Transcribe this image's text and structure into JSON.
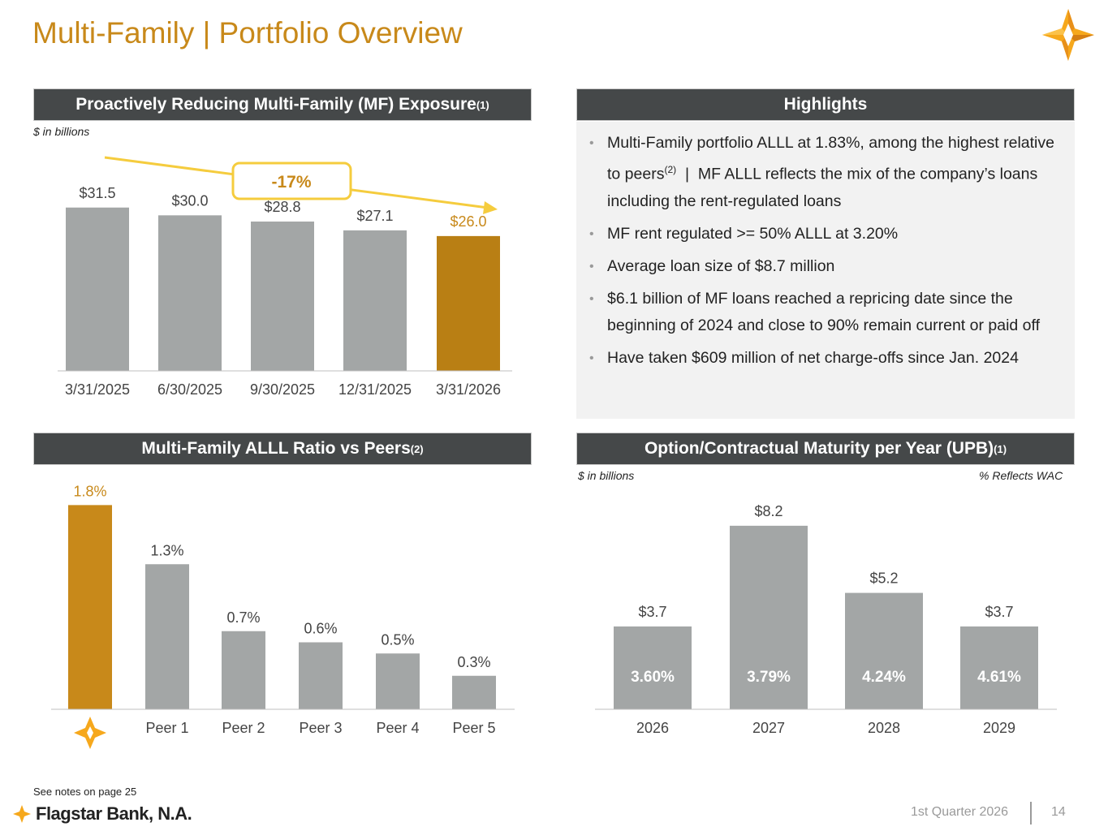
{
  "page": {
    "title": "Multi-Family | Portfolio Overview",
    "footnote": "See notes on page 25",
    "brand": "Flagstar Bank, N.A.",
    "quarter": "1st Quarter 2026",
    "page_number": "14"
  },
  "colors": {
    "gold": "#c8891a",
    "dark_gold": "#b97f14",
    "gray_bar": "#a3a6a6",
    "header_bg": "#454849",
    "trend_line": "#f5cc3e"
  },
  "panels": {
    "exposure": {
      "title": "Proactively Reducing Multi-Family (MF) Exposure",
      "sup": "(1)",
      "units": "$ in billions",
      "change_label": "-17%"
    },
    "highlights": {
      "title": "Highlights",
      "items": [
        {
          "text_before": "Multi-Family portfolio ALLL at 1.83%, among the highest relative to peers",
          "sup": "(2)",
          "text_after": "  |  MF ALLL reflects the mix of the company’s loans including the rent-regulated loans"
        },
        {
          "text": "MF rent regulated >= 50% ALLL at 3.20%"
        },
        {
          "text": "Average loan size of $8.7 million"
        },
        {
          "text": "$6.1 billion of MF loans reached a repricing date since the beginning of 2024 and close to 90% remain current or paid off"
        },
        {
          "text": "Have taken $609 million of net charge-offs since Jan. 2024"
        }
      ]
    },
    "allll": {
      "title": "Multi-Family ALLL Ratio vs Peers",
      "sup": "(2)"
    },
    "maturity": {
      "title": "Option/Contractual Maturity per Year (UPB)",
      "sup": "(1)",
      "units_left": "$ in billions",
      "units_right": "% Reflects WAC"
    }
  },
  "chart_data": [
    {
      "id": "exposure",
      "type": "bar",
      "title": "Proactively Reducing Multi-Family (MF) Exposure",
      "ylabel": "$ in billions",
      "categories": [
        "3/31/2025",
        "6/30/2025",
        "9/30/2025",
        "12/31/2025",
        "3/31/2026"
      ],
      "values": [
        31.5,
        30.0,
        28.8,
        27.1,
        26.0
      ],
      "labels": [
        "$31.5",
        "$30.0",
        "$28.8",
        "$27.1",
        "$26.0"
      ],
      "highlight_index": 4,
      "annotation": "-17%",
      "ylim": [
        0,
        36
      ]
    },
    {
      "id": "allll",
      "type": "bar",
      "title": "Multi-Family ALLL Ratio vs Peers",
      "categories": [
        "Flagstar",
        "Peer 1",
        "Peer 2",
        "Peer 3",
        "Peer 4",
        "Peer 5"
      ],
      "values": [
        1.83,
        1.3,
        0.7,
        0.6,
        0.5,
        0.3
      ],
      "labels": [
        "1.8%",
        "1.3%",
        "0.7%",
        "0.6%",
        "0.5%",
        "0.3%"
      ],
      "highlight_index": 0,
      "ylim": [
        0,
        2.0
      ]
    },
    {
      "id": "maturity",
      "type": "bar",
      "title": "Option/Contractual Maturity per Year (UPB)",
      "ylabel": "$ in billions",
      "categories": [
        "2026",
        "2027",
        "2028",
        "2029"
      ],
      "values": [
        3.7,
        8.2,
        5.2,
        3.7
      ],
      "labels": [
        "$3.7",
        "$8.2",
        "$5.2",
        "$3.7"
      ],
      "wac": [
        "3.60%",
        "3.79%",
        "4.24%",
        "4.61%"
      ],
      "ylim": [
        0,
        9.5
      ]
    }
  ]
}
